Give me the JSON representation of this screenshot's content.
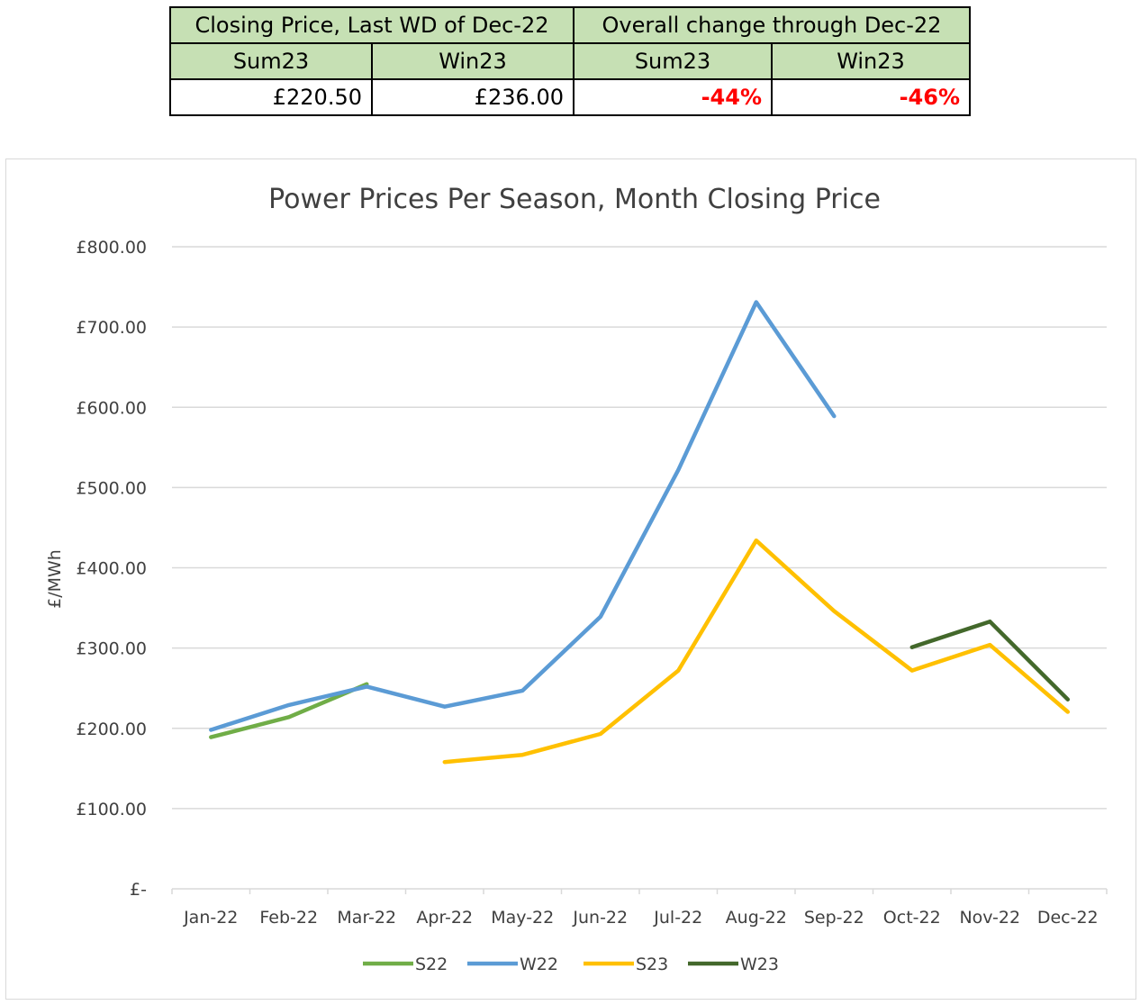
{
  "table": {
    "header_left": "Closing Price, Last WD of Dec-22",
    "header_right": "Overall change through Dec-22",
    "sub_headers": [
      "Sum23",
      "Win23",
      "Sum23",
      "Win23"
    ],
    "values": [
      "£220.50",
      "£236.00",
      "-44%",
      "-46%"
    ]
  },
  "chart_data": {
    "type": "line",
    "title": "Power Prices Per Season, Month Closing Price",
    "ylabel": "£/MWh",
    "xlabel": "",
    "categories": [
      "Jan-22",
      "Feb-22",
      "Mar-22",
      "Apr-22",
      "May-22",
      "Jun-22",
      "Jul-22",
      "Aug-22",
      "Sep-22",
      "Oct-22",
      "Nov-22",
      "Dec-22"
    ],
    "ylim": [
      0,
      800
    ],
    "yticks": [
      0,
      100,
      200,
      300,
      400,
      500,
      600,
      700,
      800
    ],
    "ytick_labels": [
      "£-",
      "£100.00",
      "£200.00",
      "£300.00",
      "£400.00",
      "£500.00",
      "£600.00",
      "£700.00",
      "£800.00"
    ],
    "grid": true,
    "legend_position": "bottom",
    "series": [
      {
        "name": "S22",
        "color": "#70ad47",
        "values": [
          189,
          214,
          255,
          null,
          null,
          null,
          null,
          null,
          null,
          null,
          null,
          null
        ]
      },
      {
        "name": "W22",
        "color": "#5b9bd5",
        "values": [
          198,
          229,
          252,
          227,
          247,
          339,
          522,
          731,
          589,
          null,
          null,
          null
        ]
      },
      {
        "name": "S23",
        "color": "#ffc000",
        "values": [
          null,
          null,
          null,
          158,
          167,
          193,
          272,
          434,
          346,
          272,
          304,
          220.5
        ]
      },
      {
        "name": "W23",
        "color": "#43682b",
        "values": [
          null,
          null,
          null,
          null,
          null,
          null,
          null,
          null,
          null,
          301,
          333,
          236
        ]
      }
    ]
  }
}
